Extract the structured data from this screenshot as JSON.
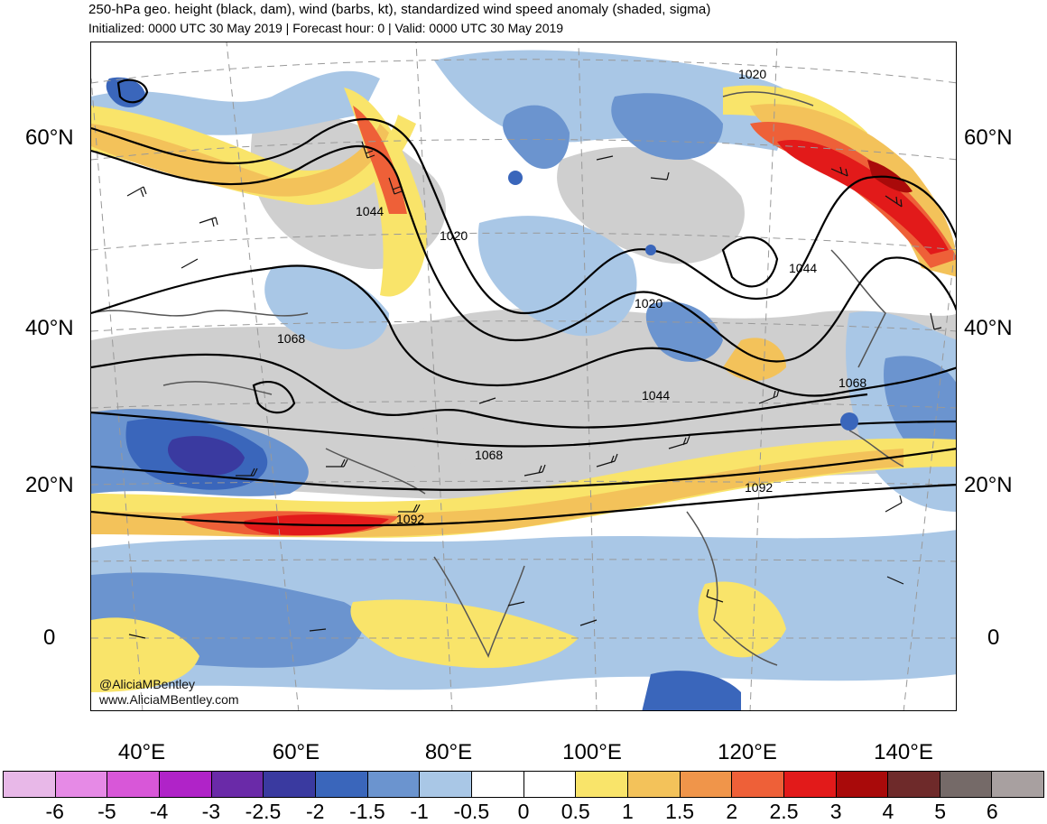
{
  "title": "250-hPa geo. height (black, dam), wind (barbs, kt), standardized wind speed anomaly (shaded, sigma)",
  "subtitle": "Initialized: 0000 UTC 30 May 2019 | Forecast hour: 0 | Valid: 0000 UTC 30 May 2019",
  "lat_labels": [
    "60°N",
    "40°N",
    "20°N",
    "0"
  ],
  "lon_labels": [
    "40°E",
    "60°E",
    "80°E",
    "100°E",
    "120°E",
    "140°E"
  ],
  "contour_labels": [
    "1020",
    "1044",
    "1020",
    "1020",
    "1044",
    "1068",
    "1044",
    "1068",
    "1068",
    "1092",
    "1092"
  ],
  "credits": [
    "@AliciaMBentley",
    "www.AliciaMBentley.com"
  ],
  "colorbar": {
    "labels": [
      "-6",
      "-5",
      "-4",
      "-3",
      "-2.5",
      "-2",
      "-1.5",
      "-1",
      "-0.5",
      "0",
      "0.5",
      "1",
      "1.5",
      "2",
      "2.5",
      "3",
      "4",
      "5",
      "6"
    ],
    "colors": [
      "#e8b8e8",
      "#e68ae6",
      "#d857d8",
      "#b023c8",
      "#6a2aa8",
      "#3a3aa0",
      "#3a66bb",
      "#6b94cf",
      "#a9c7e6",
      "#ffffff",
      "#ffffff",
      "#f9e46a",
      "#f3c25a",
      "#f0954a",
      "#ee6038",
      "#e21a1a",
      "#a90a0a",
      "#6e2a2a",
      "#756a68",
      "#a8a0a0"
    ]
  }
}
